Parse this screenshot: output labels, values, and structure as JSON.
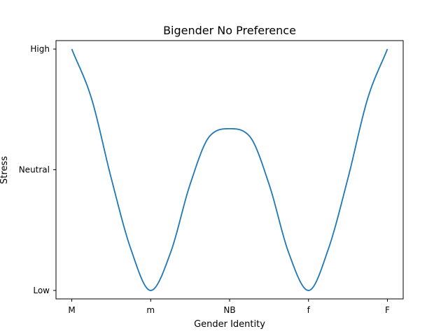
{
  "chart_data": {
    "type": "line",
    "title": "Bigender No Preference",
    "xlabel": "Gender Identity",
    "ylabel": "Stress",
    "x_categories": [
      "M",
      "m",
      "NB",
      "f",
      "F"
    ],
    "y_categories": [
      "Low",
      "Neutral",
      "High"
    ],
    "xlim": [
      -0.2,
      4.2
    ],
    "ylim": [
      -0.07,
      2.07
    ],
    "grid": false,
    "series": [
      {
        "color": "#1f77b4",
        "x": [
          0,
          0.25,
          0.5,
          0.75,
          1,
          1.25,
          1.5,
          1.75,
          2,
          2.25,
          2.5,
          2.75,
          3,
          3.25,
          3.5,
          3.75,
          4
        ],
        "y": [
          2.0,
          1.59,
          0.93,
          0.34,
          0.0,
          0.31,
          0.88,
          1.28,
          1.34,
          1.28,
          0.88,
          0.31,
          0.0,
          0.34,
          0.93,
          1.59,
          2.0
        ]
      }
    ]
  }
}
